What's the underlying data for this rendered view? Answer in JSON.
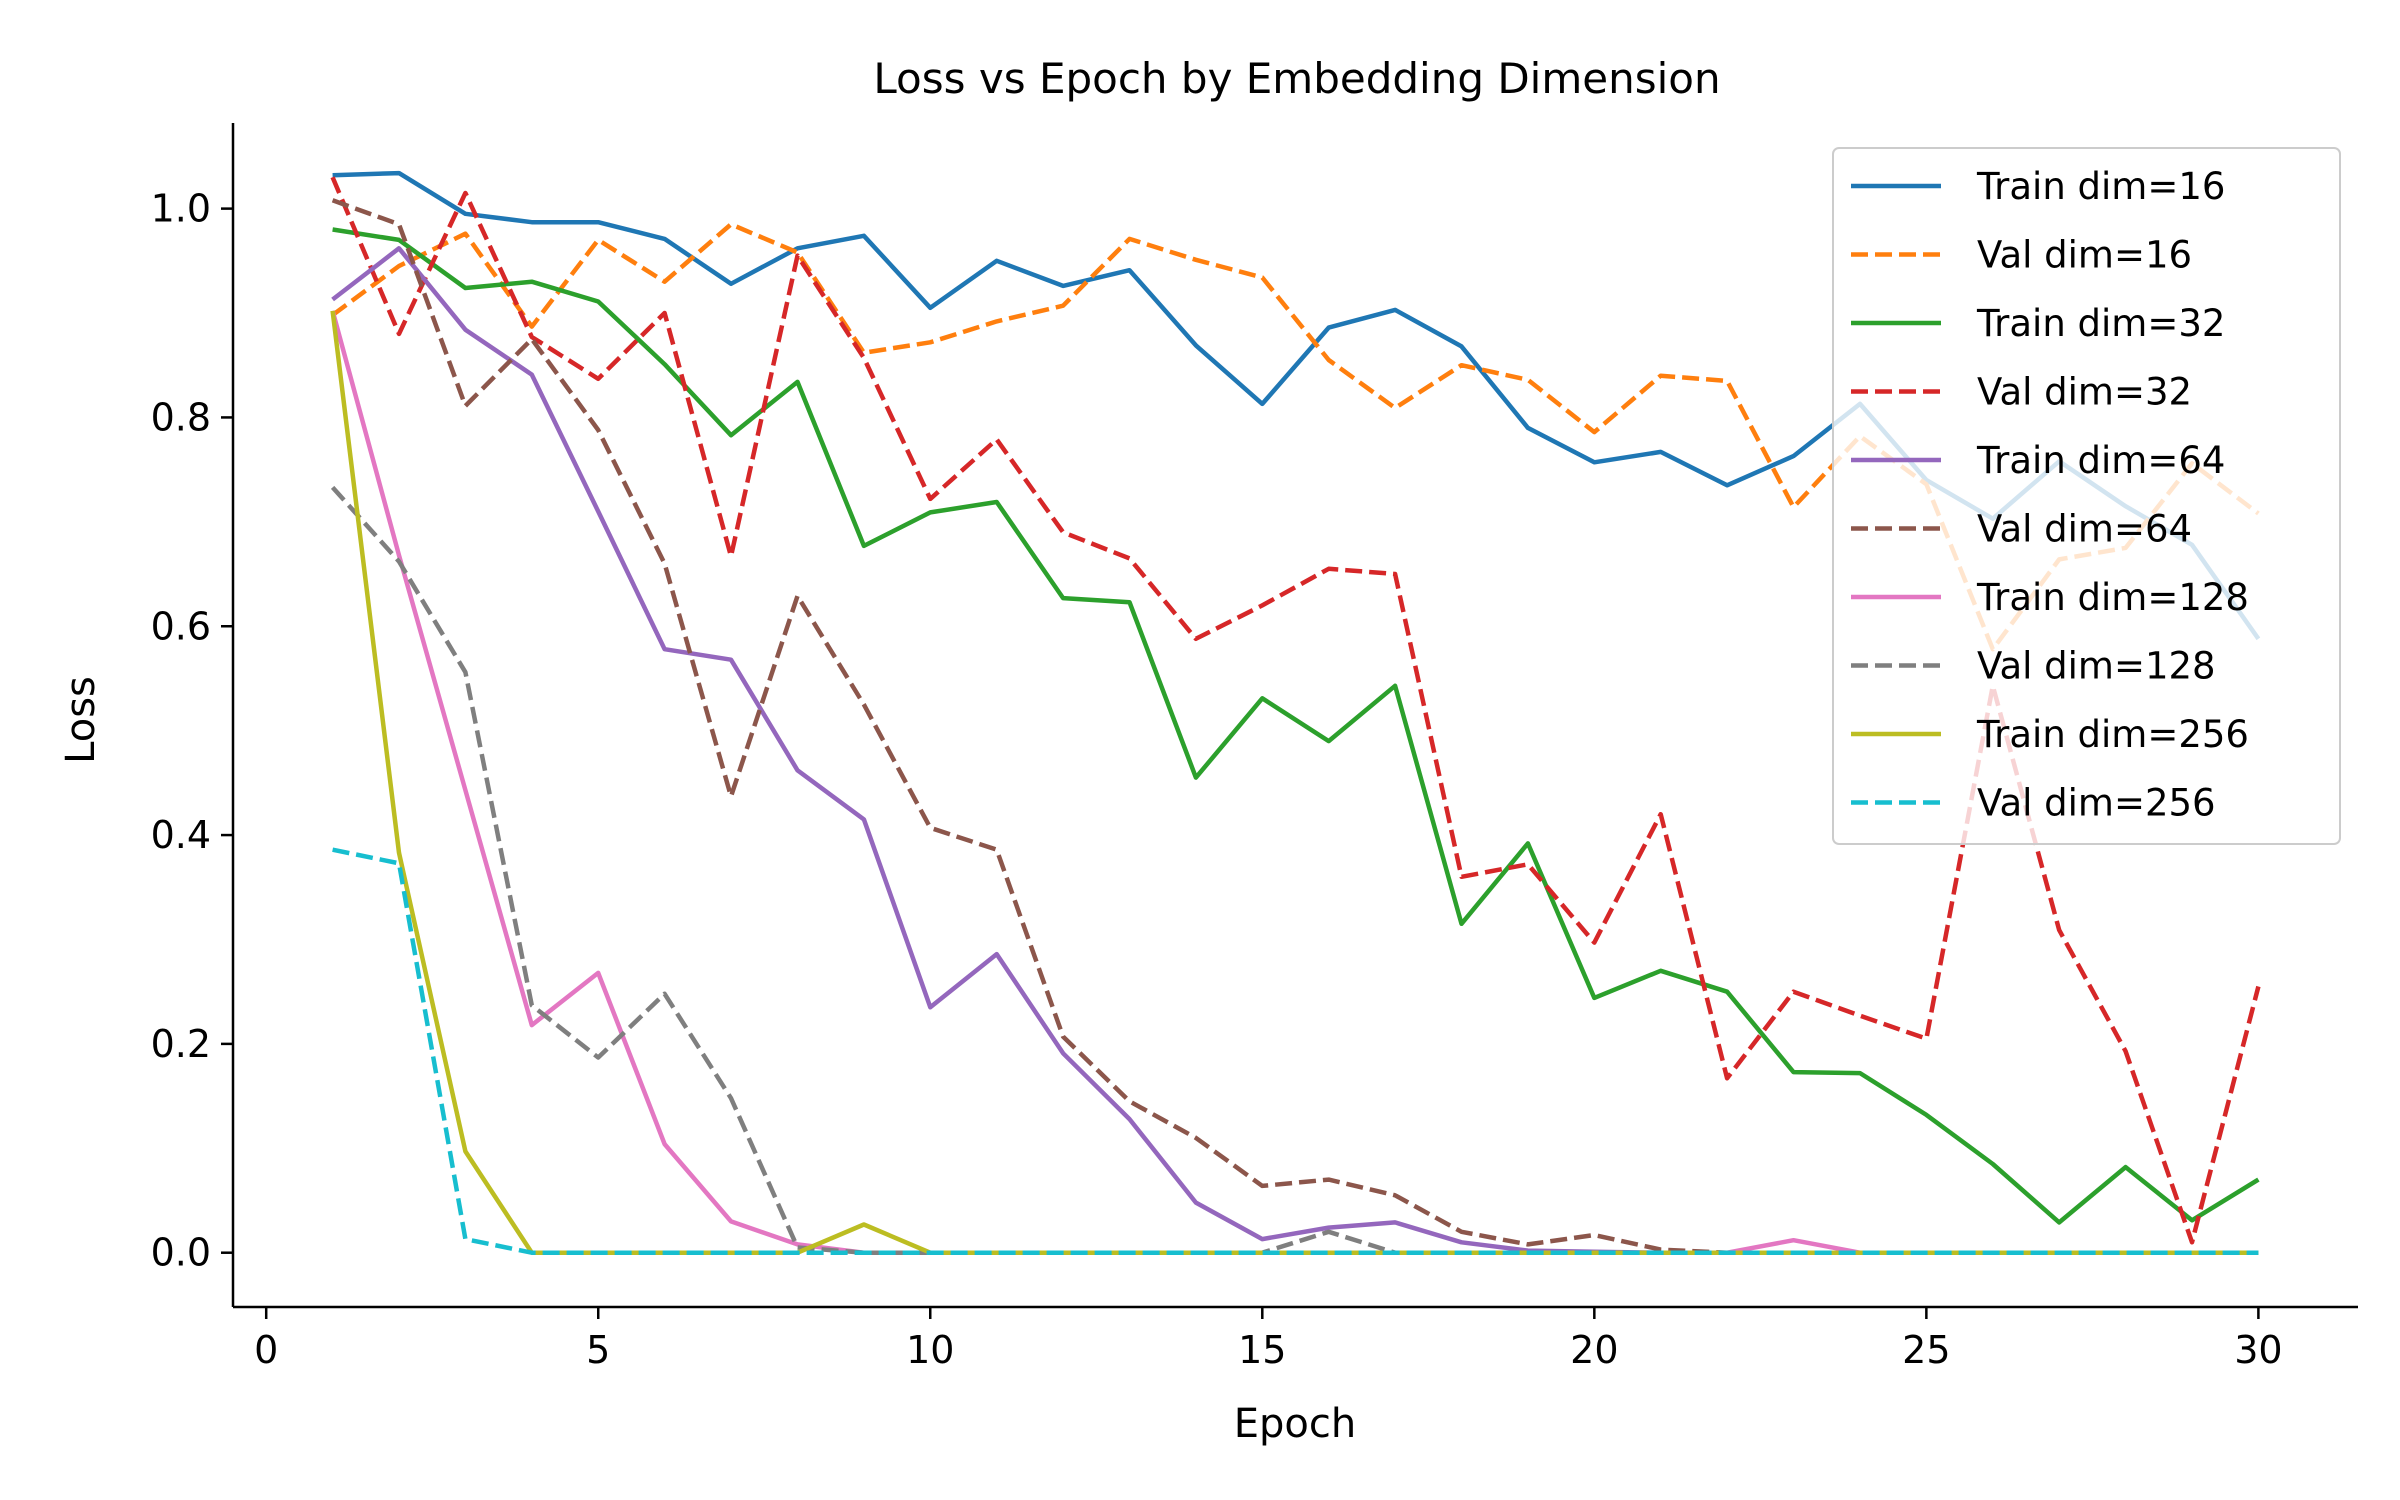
{
  "chart_data": {
    "type": "line",
    "title": "Loss vs Epoch by Embedding Dimension",
    "xlabel": "Epoch",
    "ylabel": "Loss",
    "xlim": [
      -0.5,
      31.5
    ],
    "ylim": [
      -0.052,
      1.082
    ],
    "xticks": [
      0,
      5,
      10,
      15,
      20,
      25,
      30
    ],
    "yticks": [
      0.0,
      0.2,
      0.4,
      0.6,
      0.8,
      1.0
    ],
    "xtick_labels": [
      "0",
      "5",
      "10",
      "15",
      "20",
      "25",
      "30"
    ],
    "ytick_labels": [
      "0.0",
      "0.2",
      "0.4",
      "0.6",
      "0.8",
      "1.0"
    ],
    "grid": false,
    "legend_position": "top-right",
    "x": [
      1,
      2,
      3,
      4,
      5,
      6,
      7,
      8,
      9,
      10,
      11,
      12,
      13,
      14,
      15,
      16,
      17,
      18,
      19,
      20,
      21,
      22,
      23,
      24,
      25,
      26,
      27,
      28,
      29,
      30
    ],
    "series": [
      {
        "name": "Train dim=16",
        "color": "#1f77b4",
        "dash": "solid",
        "values": [
          1.032,
          1.034,
          0.995,
          0.987,
          0.987,
          0.971,
          0.928,
          0.962,
          0.974,
          0.905,
          0.95,
          0.926,
          0.941,
          0.869,
          0.813,
          0.886,
          0.903,
          0.868,
          0.79,
          0.757,
          0.767,
          0.735,
          0.763,
          0.813,
          0.74,
          0.703,
          0.758,
          0.715,
          0.678,
          0.588
        ]
      },
      {
        "name": "Val dim=16",
        "color": "#ff7f0e",
        "dash": "dashed",
        "values": [
          0.898,
          0.945,
          0.976,
          0.887,
          0.97,
          0.93,
          0.985,
          0.958,
          0.862,
          0.872,
          0.892,
          0.907,
          0.971,
          0.951,
          0.934,
          0.855,
          0.809,
          0.85,
          0.836,
          0.786,
          0.84,
          0.835,
          0.714,
          0.782,
          0.736,
          0.578,
          0.664,
          0.675,
          0.756,
          0.708
        ]
      },
      {
        "name": "Train dim=32",
        "color": "#2ca02c",
        "dash": "solid",
        "values": [
          0.98,
          0.97,
          0.924,
          0.93,
          0.911,
          0.851,
          0.783,
          0.834,
          0.677,
          0.709,
          0.719,
          0.627,
          0.623,
          0.455,
          0.531,
          0.49,
          0.543,
          0.315,
          0.392,
          0.244,
          0.27,
          0.25,
          0.173,
          0.172,
          0.132,
          0.085,
          0.029,
          0.082,
          0.031,
          0.07
        ]
      },
      {
        "name": "Val dim=32",
        "color": "#d62728",
        "dash": "dashed",
        "values": [
          1.03,
          0.88,
          1.015,
          0.877,
          0.837,
          0.9,
          0.667,
          0.955,
          0.857,
          0.722,
          0.779,
          0.69,
          0.665,
          0.588,
          0.62,
          0.655,
          0.65,
          0.36,
          0.372,
          0.297,
          0.42,
          0.167,
          0.25,
          0.227,
          0.205,
          0.543,
          0.309,
          0.193,
          0.01,
          0.255
        ]
      },
      {
        "name": "Train dim=64",
        "color": "#9467bd",
        "dash": "solid",
        "values": [
          0.913,
          0.962,
          0.884,
          0.841,
          0.71,
          0.578,
          0.568,
          0.462,
          0.415,
          0.235,
          0.286,
          0.191,
          0.128,
          0.048,
          0.013,
          0.024,
          0.029,
          0.01,
          0.002,
          0.001,
          0.0,
          0.0,
          0.0,
          0.0,
          0.0,
          0.0,
          0.0,
          0.0,
          0.0,
          0.0
        ]
      },
      {
        "name": "Val dim=64",
        "color": "#8c564b",
        "dash": "dashed",
        "values": [
          1.008,
          0.985,
          0.811,
          0.875,
          0.788,
          0.66,
          0.437,
          0.629,
          0.525,
          0.407,
          0.386,
          0.207,
          0.145,
          0.11,
          0.064,
          0.07,
          0.055,
          0.02,
          0.008,
          0.017,
          0.003,
          0.0,
          0.0,
          0.0,
          0.0,
          0.0,
          0.0,
          0.0,
          0.0,
          0.0
        ]
      },
      {
        "name": "Train dim=128",
        "color": "#e377c2",
        "dash": "solid",
        "values": [
          0.902,
          0.668,
          0.443,
          0.218,
          0.268,
          0.104,
          0.03,
          0.008,
          0.0,
          0.0,
          0.0,
          0.0,
          0.0,
          0.0,
          0.0,
          0.0,
          0.0,
          0.0,
          0.0,
          0.0,
          0.0,
          0.0,
          0.012,
          0.0,
          0.0,
          0.0,
          0.0,
          0.0,
          0.0,
          0.0
        ]
      },
      {
        "name": "Val dim=128",
        "color": "#7f7f7f",
        "dash": "dashed",
        "values": [
          0.733,
          0.662,
          0.556,
          0.237,
          0.187,
          0.248,
          0.148,
          0.005,
          0.0,
          0.0,
          0.0,
          0.0,
          0.0,
          0.0,
          0.0,
          0.02,
          0.0,
          0.0,
          0.0,
          0.0,
          0.0,
          0.0,
          0.0,
          0.0,
          0.0,
          0.0,
          0.0,
          0.0,
          0.0,
          0.0
        ]
      },
      {
        "name": "Train dim=256",
        "color": "#bcbd22",
        "dash": "solid",
        "values": [
          0.902,
          0.383,
          0.097,
          0.0,
          0.0,
          0.0,
          0.0,
          0.0,
          0.027,
          0.0,
          0.0,
          0.0,
          0.0,
          0.0,
          0.0,
          0.0,
          0.0,
          0.0,
          0.0,
          0.0,
          0.0,
          0.0,
          0.0,
          0.0,
          0.0,
          0.0,
          0.0,
          0.0,
          0.0,
          0.0
        ]
      },
      {
        "name": "Val dim=256",
        "color": "#17becf",
        "dash": "dashed",
        "values": [
          0.386,
          0.373,
          0.013,
          0.0,
          0.0,
          0.0,
          0.0,
          0.0,
          0.0,
          0.0,
          0.0,
          0.0,
          0.0,
          0.0,
          0.0,
          0.0,
          0.0,
          0.0,
          0.0,
          0.0,
          0.0,
          0.0,
          0.0,
          0.0,
          0.0,
          0.0,
          0.0,
          0.0,
          0.0,
          0.0
        ]
      }
    ]
  }
}
